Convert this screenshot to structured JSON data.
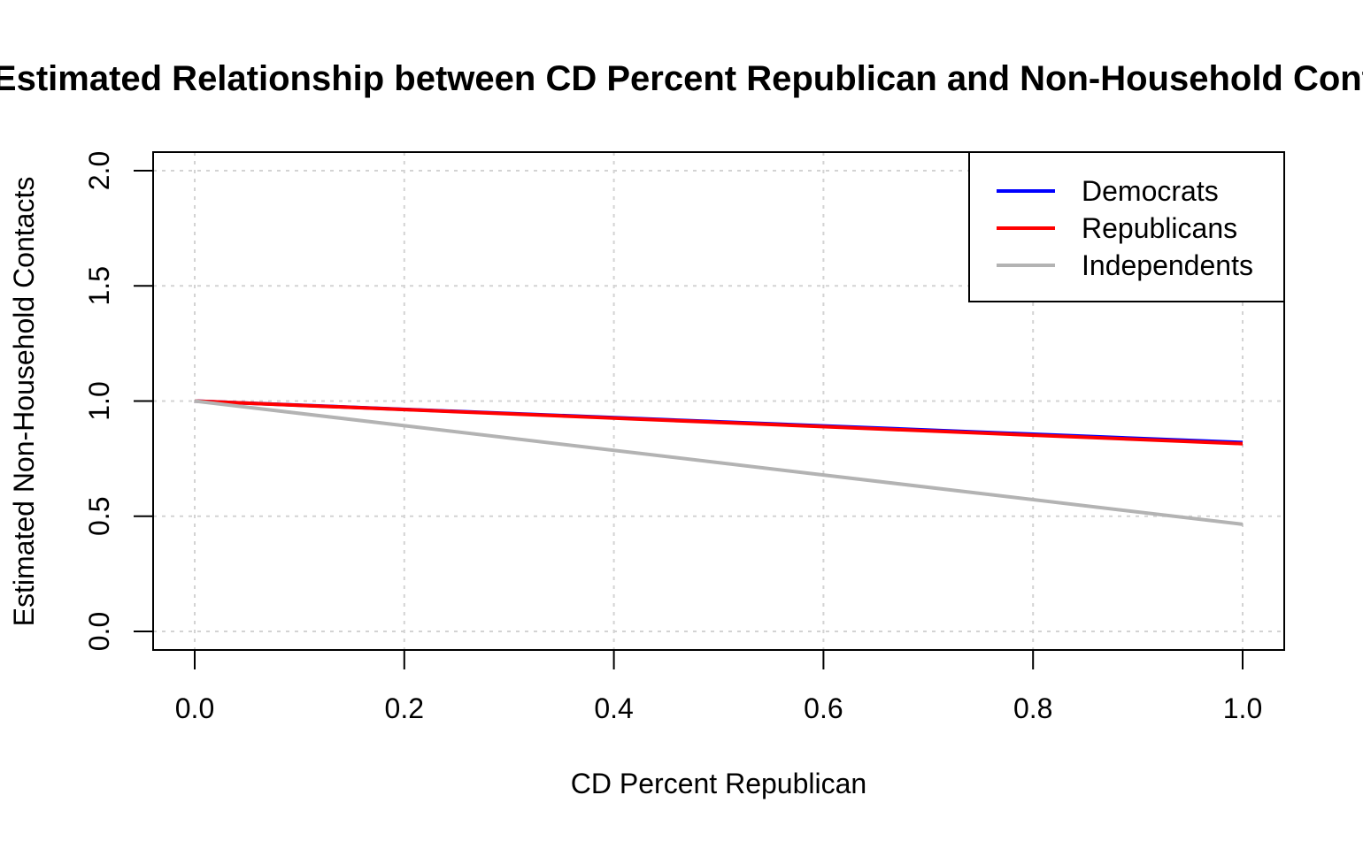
{
  "chart_data": {
    "type": "line",
    "title": "Estimated Relationship between CD Percent Republican and Non-Household Contacts",
    "xlabel": "CD Percent Republican",
    "ylabel": "Estimated Non-Household Contacts",
    "xlim": [
      0,
      1
    ],
    "ylim": [
      0,
      2
    ],
    "x_ticks": [
      "0.0",
      "0.2",
      "0.4",
      "0.6",
      "0.8",
      "1.0"
    ],
    "y_ticks": [
      "0.0",
      "0.5",
      "1.0",
      "1.5",
      "2.0"
    ],
    "grid": true,
    "legend_position": "top-right",
    "series": [
      {
        "name": "Democrats",
        "color": "#0000ff",
        "x": [
          0,
          1
        ],
        "y": [
          1.0,
          0.82
        ]
      },
      {
        "name": "Republicans",
        "color": "#ff0000",
        "x": [
          0,
          1
        ],
        "y": [
          1.0,
          0.815
        ]
      },
      {
        "name": "Independents",
        "color": "#b3b3b3",
        "x": [
          0,
          1
        ],
        "y": [
          1.0,
          0.465
        ]
      }
    ]
  }
}
